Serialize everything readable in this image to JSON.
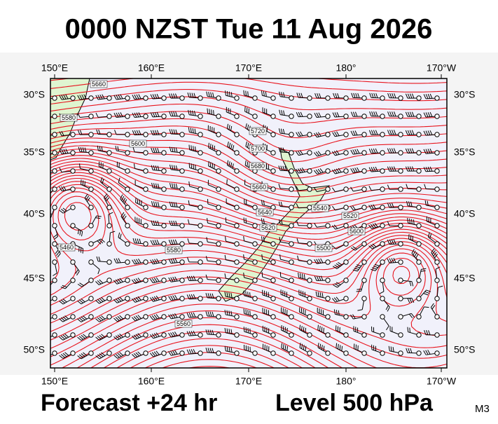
{
  "header": {
    "title": "0000 NZST Tue 11 Aug 2026"
  },
  "map": {
    "lon_labels": [
      "150°E",
      "160°E",
      "170°E",
      "180°",
      "170°W"
    ],
    "lat_labels": [
      "30°S",
      "35°S",
      "40°S",
      "45°S",
      "50°S"
    ],
    "contour_labels": [
      "5660",
      "5580",
      "5720",
      "5700",
      "5680",
      "5660",
      "5640",
      "5620",
      "5460",
      "5500",
      "5540",
      "5520",
      "5600",
      "5560",
      "5580",
      "5600"
    ]
  },
  "footer": {
    "forecast": "Forecast +24 hr",
    "level": "Level 500 hPa",
    "model": "M3"
  }
}
